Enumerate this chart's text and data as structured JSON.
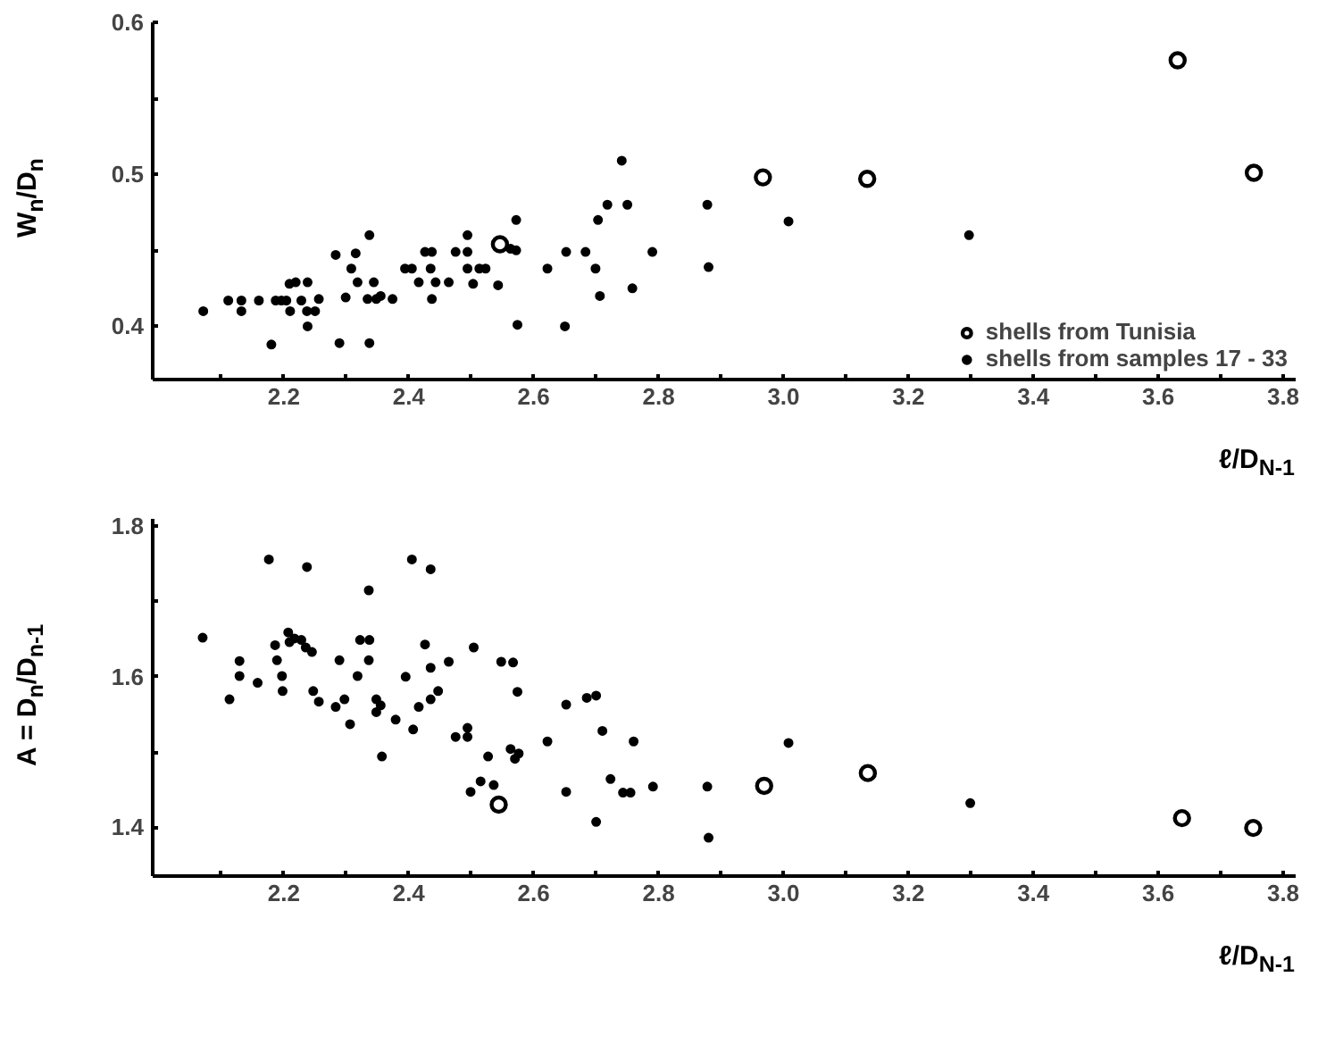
{
  "chart_data": [
    {
      "type": "scatter",
      "ylabel": "W$_{n}$/D$_{n}$",
      "xlabel": "ℓ/D$_{N-1}$",
      "xlim": [
        1.99,
        3.82
      ],
      "ylim": [
        0.365,
        0.6
      ],
      "xticks": [
        {
          "value": 2.1,
          "label": null
        },
        2.2,
        {
          "value": 2.3,
          "label": null
        },
        2.4,
        {
          "value": 2.5,
          "label": null
        },
        2.6,
        {
          "value": 2.7,
          "label": null
        },
        2.8,
        {
          "value": 2.9,
          "label": null
        },
        {
          "value": 3,
          "label": "3.0"
        },
        {
          "value": 3.1,
          "label": null
        },
        3.2,
        {
          "value": 3.3,
          "label": null
        },
        3.4,
        {
          "value": 3.5,
          "label": null
        },
        3.6,
        {
          "value": 3.7,
          "label": null
        },
        3.8
      ],
      "yticks": [
        0.4,
        {
          "value": 0.45,
          "label": null
        },
        0.5,
        {
          "value": 0.55,
          "label": null
        },
        0.6
      ],
      "grid": false,
      "legend": "bottom right",
      "marker": "circle",
      "series": [
        {
          "name": "shells from Tunisia",
          "color": "#000000",
          "x": [
            2.546,
            2.967,
            3.134,
            3.631,
            3.753
          ],
          "values": [
            0.454,
            0.498,
            0.497,
            0.575,
            0.501
          ]
        },
        {
          "name": "shells from samples 17 - 33",
          "color": "#000000",
          "x": [
            2.071,
            2.111,
            2.132,
            2.132,
            2.16,
            2.18,
            2.187,
            2.196,
            2.204,
            2.209,
            2.219,
            2.21,
            2.228,
            2.238,
            2.238,
            2.237,
            2.25,
            2.256,
            2.283,
            2.289,
            2.299,
            2.308,
            2.315,
            2.318,
            2.337,
            2.337,
            2.334,
            2.344,
            2.348,
            2.355,
            2.374,
            2.394,
            2.405,
            2.416,
            2.426,
            2.437,
            2.435,
            2.437,
            2.443,
            2.464,
            2.475,
            2.494,
            2.494,
            2.494,
            2.503,
            2.513,
            2.523,
            2.543,
            2.563,
            2.572,
            2.572,
            2.574,
            2.622,
            2.65,
            2.652,
            2.683,
            2.699,
            2.703,
            2.706,
            2.718,
            2.741,
            2.75,
            2.758,
            2.79,
            2.878,
            2.88,
            3.008,
            3.297
          ],
          "values": [
            0.41,
            0.417,
            0.417,
            0.41,
            0.417,
            0.388,
            0.417,
            0.417,
            0.417,
            0.428,
            0.429,
            0.41,
            0.417,
            0.429,
            0.4,
            0.41,
            0.41,
            0.418,
            0.447,
            0.389,
            0.419,
            0.438,
            0.448,
            0.429,
            0.46,
            0.389,
            0.418,
            0.429,
            0.418,
            0.42,
            0.418,
            0.438,
            0.438,
            0.429,
            0.449,
            0.449,
            0.438,
            0.418,
            0.429,
            0.429,
            0.449,
            0.46,
            0.449,
            0.438,
            0.428,
            0.438,
            0.438,
            0.427,
            0.451,
            0.47,
            0.45,
            0.401,
            0.438,
            0.4,
            0.449,
            0.449,
            0.438,
            0.47,
            0.42,
            0.48,
            0.509,
            0.48,
            0.425,
            0.449,
            0.48,
            0.439,
            0.469,
            0.46
          ]
        }
      ]
    },
    {
      "type": "scatter",
      "ylabel": "A = D$_{n}$/D$_{n-1}$",
      "xlabel": "ℓ/D$_{N-1}$",
      "xlim": [
        1.99,
        3.82
      ],
      "ylim": [
        1.335,
        1.81
      ],
      "xticks": [
        {
          "value": 2.1,
          "label": null
        },
        2.2,
        {
          "value": 2.3,
          "label": null
        },
        2.4,
        {
          "value": 2.5,
          "label": null
        },
        2.6,
        {
          "value": 2.7,
          "label": null
        },
        2.8,
        {
          "value": 2.9,
          "label": null
        },
        {
          "value": 3,
          "label": "3.0"
        },
        {
          "value": 3.1,
          "label": null
        },
        3.2,
        {
          "value": 3.3,
          "label": null
        },
        3.4,
        {
          "value": 3.5,
          "label": null
        },
        3.6,
        {
          "value": 3.7,
          "label": null
        },
        3.8
      ],
      "yticks": [
        1.4,
        {
          "value": 1.5,
          "label": null
        },
        1.6,
        {
          "value": 1.7,
          "label": null
        },
        1.8
      ],
      "grid": false,
      "marker": "circle",
      "series": [
        {
          "color": "#000000",
          "x": [
            2.544,
            2.969,
            3.135,
            3.638,
            3.752
          ],
          "values": [
            1.43,
            1.455,
            1.472,
            1.412,
            1.399
          ]
        },
        {
          "color": "#000000",
          "x": [
            2.07,
            2.113,
            2.129,
            2.129,
            2.158,
            2.176,
            2.186,
            2.189,
            2.197,
            2.198,
            2.207,
            2.209,
            2.217,
            2.228,
            2.235,
            2.237,
            2.245,
            2.247,
            2.256,
            2.283,
            2.289,
            2.297,
            2.306,
            2.318,
            2.322,
            2.337,
            2.336,
            2.336,
            2.348,
            2.355,
            2.348,
            2.357,
            2.379,
            2.395,
            2.405,
            2.407,
            2.416,
            2.426,
            2.435,
            2.435,
            2.435,
            2.447,
            2.464,
            2.475,
            2.494,
            2.494,
            2.499,
            2.504,
            2.515,
            2.527,
            2.536,
            2.548,
            2.567,
            2.563,
            2.57,
            2.576,
            2.574,
            2.622,
            2.652,
            2.652,
            2.685,
            2.7,
            2.7,
            2.71,
            2.723,
            2.743,
            2.755,
            2.76,
            2.791,
            2.878,
            2.88,
            3.008,
            3.299
          ],
          "values": [
            1.652,
            1.57,
            1.621,
            1.601,
            1.592,
            1.756,
            1.642,
            1.622,
            1.601,
            1.581,
            1.659,
            1.646,
            1.651,
            1.649,
            1.639,
            1.746,
            1.633,
            1.581,
            1.567,
            1.56,
            1.622,
            1.57,
            1.537,
            1.601,
            1.649,
            1.649,
            1.715,
            1.622,
            1.57,
            1.562,
            1.553,
            1.494,
            1.543,
            1.6,
            1.756,
            1.53,
            1.56,
            1.643,
            1.743,
            1.612,
            1.57,
            1.581,
            1.62,
            1.52,
            1.52,
            1.532,
            1.447,
            1.639,
            1.461,
            1.494,
            1.456,
            1.62,
            1.619,
            1.504,
            1.491,
            1.498,
            1.58,
            1.514,
            1.563,
            1.447,
            1.572,
            1.575,
            1.407,
            1.528,
            1.464,
            1.446,
            1.446,
            1.514,
            1.454,
            1.454,
            1.386,
            1.512,
            1.432
          ]
        }
      ]
    }
  ]
}
